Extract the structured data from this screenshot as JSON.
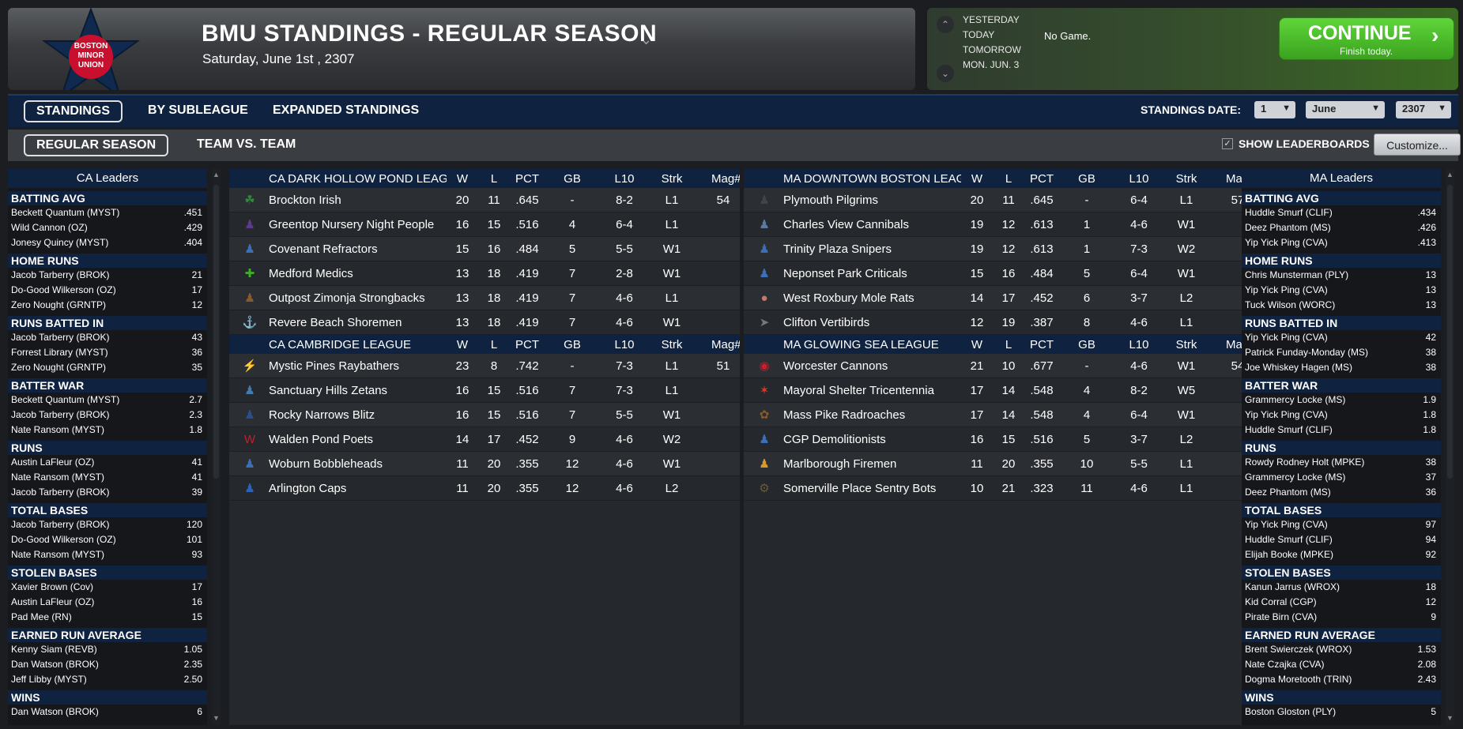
{
  "header": {
    "title": "BMU STANDINGS - REGULAR SEASON",
    "date": "Saturday, June 1st , 2307",
    "logo_text": [
      "BOSTON",
      "MINOR",
      "UNION"
    ],
    "colors": {
      "logo_star": "#10294f",
      "logo_circle": "#c8102e"
    }
  },
  "schedule": {
    "rows": [
      "YESTERDAY",
      "TODAY",
      "TOMORROW",
      "MON. JUN. 3"
    ],
    "today_game": "No Game.",
    "continue_label": "CONTINUE",
    "continue_sub": "Finish today.",
    "continue_icon": "chevron-right-icon",
    "up_icon": "chevron-up-icon",
    "down_icon": "chevron-down-icon"
  },
  "tabs": {
    "primary": [
      "STANDINGS",
      "BY SUBLEAGUE",
      "EXPANDED STANDINGS"
    ],
    "secondary": [
      "REGULAR SEASON",
      "TEAM VS. TEAM"
    ],
    "standings_date_label": "STANDINGS DATE:",
    "date_day": "1",
    "date_month": "June",
    "date_year": "2307",
    "show_leaderboards": "SHOW LEADERBOARDS",
    "customize": "Customize..."
  },
  "left_leaders": {
    "title": "CA Leaders",
    "categories": [
      {
        "name": "BATTING AVG",
        "rows": [
          [
            "Beckett Quantum (MYST)",
            ".451"
          ],
          [
            "Wild Cannon (OZ)",
            ".429"
          ],
          [
            "Jonesy Quincy (MYST)",
            ".404"
          ]
        ]
      },
      {
        "name": "HOME RUNS",
        "rows": [
          [
            "Jacob Tarberry (BROK)",
            "21"
          ],
          [
            "Do-Good Wilkerson (OZ)",
            "17"
          ],
          [
            "Zero Nought (GRNTP)",
            "12"
          ]
        ]
      },
      {
        "name": "RUNS BATTED IN",
        "rows": [
          [
            "Jacob Tarberry (BROK)",
            "43"
          ],
          [
            "Forrest Library (MYST)",
            "36"
          ],
          [
            "Zero Nought (GRNTP)",
            "35"
          ]
        ]
      },
      {
        "name": "BATTER WAR",
        "rows": [
          [
            "Beckett Quantum (MYST)",
            "2.7"
          ],
          [
            "Jacob Tarberry (BROK)",
            "2.3"
          ],
          [
            "Nate Ransom (MYST)",
            "1.8"
          ]
        ]
      },
      {
        "name": "RUNS",
        "rows": [
          [
            "Austin LaFleur (OZ)",
            "41"
          ],
          [
            "Nate Ransom (MYST)",
            "41"
          ],
          [
            "Jacob Tarberry (BROK)",
            "39"
          ]
        ]
      },
      {
        "name": "TOTAL BASES",
        "rows": [
          [
            "Jacob Tarberry (BROK)",
            "120"
          ],
          [
            "Do-Good Wilkerson (OZ)",
            "101"
          ],
          [
            "Nate Ransom (MYST)",
            "93"
          ]
        ]
      },
      {
        "name": "STOLEN BASES",
        "rows": [
          [
            "Xavier Brown (Cov)",
            "17"
          ],
          [
            "Austin LaFleur (OZ)",
            "16"
          ],
          [
            "Pad Mee (RN)",
            "15"
          ]
        ]
      },
      {
        "name": "EARNED RUN AVERAGE",
        "rows": [
          [
            "Kenny Siam (REVB)",
            "1.05"
          ],
          [
            "Dan Watson (BROK)",
            "2.35"
          ],
          [
            "Jeff Libby (MYST)",
            "2.50"
          ]
        ]
      },
      {
        "name": "WINS",
        "rows": [
          [
            "Dan Watson (BROK)",
            "6"
          ]
        ]
      }
    ]
  },
  "right_leaders": {
    "title": "MA Leaders",
    "categories": [
      {
        "name": "BATTING AVG",
        "rows": [
          [
            "Huddle Smurf (CLIF)",
            ".434"
          ],
          [
            "Deez Phantom (MS)",
            ".426"
          ],
          [
            "Yip Yick Ping (CVA)",
            ".413"
          ]
        ]
      },
      {
        "name": "HOME RUNS",
        "rows": [
          [
            "Chris Munsterman (PLY)",
            "13"
          ],
          [
            "Yip Yick Ping (CVA)",
            "13"
          ],
          [
            "Tuck Wilson (WORC)",
            "13"
          ]
        ]
      },
      {
        "name": "RUNS BATTED IN",
        "rows": [
          [
            "Yip Yick Ping (CVA)",
            "42"
          ],
          [
            "Patrick Funday-Monday (MS)",
            "38"
          ],
          [
            "Joe Whiskey Hagen (MS)",
            "38"
          ]
        ]
      },
      {
        "name": "BATTER WAR",
        "rows": [
          [
            "Grammercy Locke (MS)",
            "1.9"
          ],
          [
            "Yip Yick Ping (CVA)",
            "1.8"
          ],
          [
            "Huddle Smurf (CLIF)",
            "1.8"
          ]
        ]
      },
      {
        "name": "RUNS",
        "rows": [
          [
            "Rowdy Rodney Holt (MPKE)",
            "38"
          ],
          [
            "Grammercy Locke (MS)",
            "37"
          ],
          [
            "Deez Phantom (MS)",
            "36"
          ]
        ]
      },
      {
        "name": "TOTAL BASES",
        "rows": [
          [
            "Yip Yick Ping (CVA)",
            "97"
          ],
          [
            "Huddle Smurf (CLIF)",
            "94"
          ],
          [
            "Elijah Booke (MPKE)",
            "92"
          ]
        ]
      },
      {
        "name": "STOLEN BASES",
        "rows": [
          [
            "Kanun Jarrus (WROX)",
            "18"
          ],
          [
            "Kid Corral (CGP)",
            "12"
          ],
          [
            "Pirate Birn (CVA)",
            "9"
          ]
        ]
      },
      {
        "name": "EARNED RUN AVERAGE",
        "rows": [
          [
            "Brent Swierczek (WROX)",
            "1.53"
          ],
          [
            "Nate Czajka (CVA)",
            "2.08"
          ],
          [
            "Dogma Moretooth (TRIN)",
            "2.43"
          ]
        ]
      },
      {
        "name": "WINS",
        "rows": [
          [
            "Boston Gloston (PLY)",
            "5"
          ]
        ]
      }
    ]
  },
  "columns": [
    "W",
    "L",
    "PCT",
    "GB",
    "L10",
    "Strk",
    "Mag#"
  ],
  "standings_left": [
    {
      "league": "CA DARK HOLLOW POND LEAGUE",
      "teams": [
        {
          "name": "Brockton Irish",
          "w": "20",
          "l": "11",
          "pct": ".645",
          "gb": "-",
          "l10": "8-2",
          "strk": "L1",
          "mag": "54",
          "icon": "shamrock-icon",
          "color": "#2e8b3a"
        },
        {
          "name": "Greentop Nursery Night People",
          "w": "16",
          "l": "15",
          "pct": ".516",
          "gb": "4",
          "l10": "6-4",
          "strk": "L1",
          "mag": "",
          "icon": "figure-icon",
          "color": "#5a3b8c"
        },
        {
          "name": "Covenant Refractors",
          "w": "15",
          "l": "16",
          "pct": ".484",
          "gb": "5",
          "l10": "5-5",
          "strk": "W1",
          "mag": "",
          "icon": "figure-icon",
          "color": "#3b6fb6"
        },
        {
          "name": "Medford Medics",
          "w": "13",
          "l": "18",
          "pct": ".419",
          "gb": "7",
          "l10": "2-8",
          "strk": "W1",
          "mag": "",
          "icon": "cross-icon",
          "color": "#3fae2a"
        },
        {
          "name": "Outpost Zimonja Strongbacks",
          "w": "13",
          "l": "18",
          "pct": ".419",
          "gb": "7",
          "l10": "4-6",
          "strk": "L1",
          "mag": "",
          "icon": "figure-icon",
          "color": "#8a5a2b"
        },
        {
          "name": "Revere Beach Shoremen",
          "w": "13",
          "l": "18",
          "pct": ".419",
          "gb": "7",
          "l10": "4-6",
          "strk": "W1",
          "mag": "",
          "icon": "anchor-icon",
          "color": "#4a2a3a"
        }
      ]
    },
    {
      "league": "CA CAMBRIDGE LEAGUE",
      "teams": [
        {
          "name": "Mystic Pines Raybathers",
          "w": "23",
          "l": "8",
          "pct": ".742",
          "gb": "-",
          "l10": "7-3",
          "strk": "L1",
          "mag": "51",
          "icon": "ray-icon",
          "color": "#d8b42a"
        },
        {
          "name": "Sanctuary Hills Zetans",
          "w": "16",
          "l": "15",
          "pct": ".516",
          "gb": "7",
          "l10": "7-3",
          "strk": "L1",
          "mag": "",
          "icon": "figure-icon",
          "color": "#3f7ab0"
        },
        {
          "name": "Rocky Narrows Blitz",
          "w": "16",
          "l": "15",
          "pct": ".516",
          "gb": "7",
          "l10": "5-5",
          "strk": "W1",
          "mag": "",
          "icon": "figure-icon",
          "color": "#2a4f8a"
        },
        {
          "name": "Walden Pond Poets",
          "w": "14",
          "l": "17",
          "pct": ".452",
          "gb": "9",
          "l10": "4-6",
          "strk": "W2",
          "mag": "",
          "icon": "w-letter-icon",
          "color": "#c81e2a"
        },
        {
          "name": "Woburn Bobbleheads",
          "w": "11",
          "l": "20",
          "pct": ".355",
          "gb": "12",
          "l10": "4-6",
          "strk": "W1",
          "mag": "",
          "icon": "figure-icon",
          "color": "#3b6fb6"
        },
        {
          "name": "Arlington Caps",
          "w": "11",
          "l": "20",
          "pct": ".355",
          "gb": "12",
          "l10": "4-6",
          "strk": "L2",
          "mag": "",
          "icon": "figure-icon",
          "color": "#2a62b8"
        }
      ]
    }
  ],
  "standings_right": [
    {
      "league": "MA DOWNTOWN BOSTON LEAGUE",
      "teams": [
        {
          "name": "Plymouth Pilgrims",
          "w": "20",
          "l": "11",
          "pct": ".645",
          "gb": "-",
          "l10": "6-4",
          "strk": "L1",
          "mag": "57",
          "icon": "figure-icon",
          "color": "#444"
        },
        {
          "name": "Charles View Cannibals",
          "w": "19",
          "l": "12",
          "pct": ".613",
          "gb": "1",
          "l10": "4-6",
          "strk": "W1",
          "mag": "",
          "icon": "figure-icon",
          "color": "#5a7aa0"
        },
        {
          "name": "Trinity Plaza Snipers",
          "w": "19",
          "l": "12",
          "pct": ".613",
          "gb": "1",
          "l10": "7-3",
          "strk": "W2",
          "mag": "",
          "icon": "figure-icon",
          "color": "#3b6fb6"
        },
        {
          "name": "Neponset Park Criticals",
          "w": "15",
          "l": "16",
          "pct": ".484",
          "gb": "5",
          "l10": "6-4",
          "strk": "W1",
          "mag": "",
          "icon": "figure-icon",
          "color": "#3b6fb6"
        },
        {
          "name": "West Roxbury Mole Rats",
          "w": "14",
          "l": "17",
          "pct": ".452",
          "gb": "6",
          "l10": "3-7",
          "strk": "L2",
          "mag": "",
          "icon": "rat-icon",
          "color": "#c8786a"
        },
        {
          "name": "Clifton Vertibirds",
          "w": "12",
          "l": "19",
          "pct": ".387",
          "gb": "8",
          "l10": "4-6",
          "strk": "L1",
          "mag": "",
          "icon": "bird-icon",
          "color": "#777"
        }
      ]
    },
    {
      "league": "MA GLOWING SEA LEAGUE",
      "teams": [
        {
          "name": "Worcester Cannons",
          "w": "21",
          "l": "10",
          "pct": ".677",
          "gb": "-",
          "l10": "4-6",
          "strk": "W1",
          "mag": "54",
          "icon": "roundel-icon",
          "color": "#c81e2a"
        },
        {
          "name": "Mayoral Shelter Tricentennia",
          "w": "17",
          "l": "14",
          "pct": ".548",
          "gb": "4",
          "l10": "8-2",
          "strk": "W5",
          "mag": "",
          "icon": "emblem-icon",
          "color": "#d63a2a"
        },
        {
          "name": "Mass Pike Radroaches",
          "w": "17",
          "l": "14",
          "pct": ".548",
          "gb": "4",
          "l10": "6-4",
          "strk": "W1",
          "mag": "",
          "icon": "roach-icon",
          "color": "#8a5a2b"
        },
        {
          "name": "CGP Demolitionists",
          "w": "16",
          "l": "15",
          "pct": ".516",
          "gb": "5",
          "l10": "3-7",
          "strk": "L2",
          "mag": "",
          "icon": "figure-icon",
          "color": "#3b6fb6"
        },
        {
          "name": "Marlborough Firemen",
          "w": "11",
          "l": "20",
          "pct": ".355",
          "gb": "10",
          "l10": "5-5",
          "strk": "L1",
          "mag": "",
          "icon": "figure-icon",
          "color": "#d89a2a"
        },
        {
          "name": "Somerville Place Sentry Bots",
          "w": "10",
          "l": "21",
          "pct": ".323",
          "gb": "11",
          "l10": "4-6",
          "strk": "L1",
          "mag": "",
          "icon": "robot-icon",
          "color": "#6a5a3a"
        }
      ]
    }
  ]
}
